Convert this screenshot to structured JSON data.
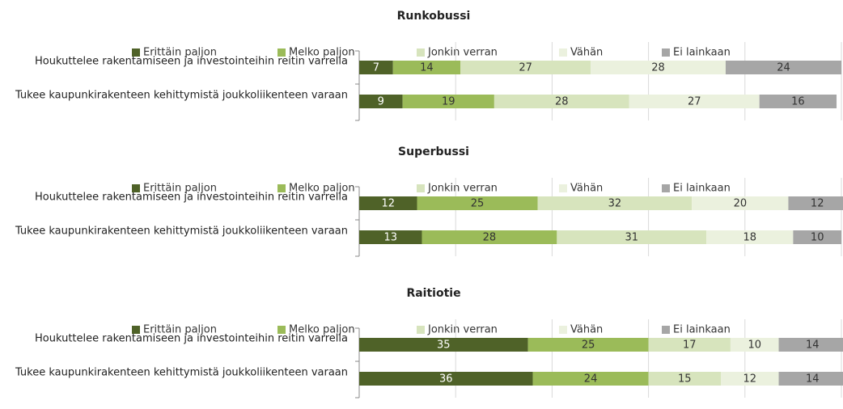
{
  "chart_data": [
    {
      "type": "bar",
      "orientation": "horizontal",
      "stacked": true,
      "title": "Runkobussi",
      "categories": [
        "Houkuttelee rakentamiseen ja investointeihin reitin varrella",
        "Tukee kaupunkirakenteen kehittymistä joukkoliikenteen varaan"
      ],
      "series": [
        {
          "name": "Erittäin paljon",
          "color": "#4f6228",
          "values": [
            7,
            9
          ]
        },
        {
          "name": "Melko paljon",
          "color": "#9bbb59",
          "values": [
            14,
            19
          ]
        },
        {
          "name": "Jonkin verran",
          "color": "#d7e4bd",
          "values": [
            27,
            28
          ]
        },
        {
          "name": "Vähän",
          "color": "#ebf1de",
          "values": [
            28,
            27
          ]
        },
        {
          "name": "Ei lainkaan",
          "color": "#a6a6a6",
          "values": [
            24,
            16
          ]
        }
      ],
      "xlim": [
        0,
        100
      ],
      "xticks": [
        0,
        20,
        40,
        60,
        80,
        100
      ],
      "grid": true,
      "legend": "top"
    },
    {
      "type": "bar",
      "orientation": "horizontal",
      "stacked": true,
      "title": "Superbussi",
      "categories": [
        "Houkuttelee rakentamiseen ja investointeihin reitin varrella",
        "Tukee kaupunkirakenteen kehittymistä joukkoliikenteen varaan"
      ],
      "series": [
        {
          "name": "Erittäin paljon",
          "color": "#4f6228",
          "values": [
            12,
            13
          ]
        },
        {
          "name": "Melko paljon",
          "color": "#9bbb59",
          "values": [
            25,
            28
          ]
        },
        {
          "name": "Jonkin verran",
          "color": "#d7e4bd",
          "values": [
            32,
            31
          ]
        },
        {
          "name": "Vähän",
          "color": "#ebf1de",
          "values": [
            20,
            18
          ]
        },
        {
          "name": "Ei lainkaan",
          "color": "#a6a6a6",
          "values": [
            12,
            10
          ]
        }
      ],
      "xlim": [
        0,
        100
      ],
      "xticks": [
        0,
        20,
        40,
        60,
        80,
        100
      ],
      "grid": true,
      "legend": "top"
    },
    {
      "type": "bar",
      "orientation": "horizontal",
      "stacked": true,
      "title": "Raitiotie",
      "categories": [
        "Houkuttelee rakentamiseen ja investointeihin reitin varrella",
        "Tukee kaupunkirakenteen kehittymistä joukkoliikenteen varaan"
      ],
      "series": [
        {
          "name": "Erittäin paljon",
          "color": "#4f6228",
          "values": [
            35,
            36
          ]
        },
        {
          "name": "Melko paljon",
          "color": "#9bbb59",
          "values": [
            25,
            24
          ]
        },
        {
          "name": "Jonkin verran",
          "color": "#d7e4bd",
          "values": [
            17,
            15
          ]
        },
        {
          "name": "Vähän",
          "color": "#ebf1de",
          "values": [
            10,
            12
          ]
        },
        {
          "name": "Ei lainkaan",
          "color": "#a6a6a6",
          "values": [
            14,
            14
          ]
        }
      ],
      "xlim": [
        0,
        100
      ],
      "xticks": [
        0,
        20,
        40,
        60,
        80,
        100
      ],
      "grid": true,
      "legend": "top"
    }
  ]
}
